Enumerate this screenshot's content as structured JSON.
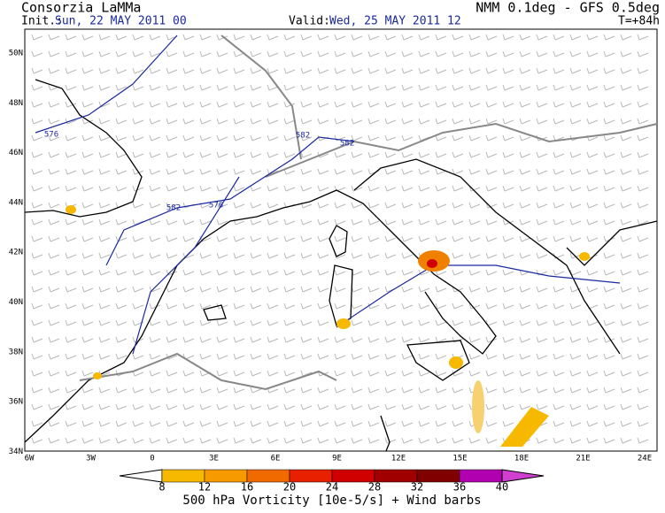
{
  "header": {
    "title": "Consorzia LaMMa",
    "model": "NMM 0.1deg - GFS 0.5deg",
    "init_label": "Init.:",
    "init_time": "Sun, 22 MAY 2011  00",
    "valid_label": "Valid:",
    "valid_time": "Wed, 25 MAY 2011  12",
    "forecast_step": "T=+84h"
  },
  "map": {
    "lat_labels": [
      "50N",
      "48N",
      "46N",
      "44N",
      "42N",
      "40N",
      "38N",
      "36N",
      "34N"
    ],
    "lon_labels": [
      "6W",
      "3W",
      "0",
      "3E",
      "6E",
      "9E",
      "12E",
      "15E",
      "18E",
      "21E",
      "24E"
    ],
    "contour_labels": [
      "576",
      "582",
      "582",
      "582",
      "576"
    ]
  },
  "legend": {
    "ticks": [
      8,
      12,
      16,
      20,
      24,
      28,
      32,
      36,
      40
    ],
    "caption": "500 hPa Vorticity [10e-5/s] + Wind barbs"
  }
}
